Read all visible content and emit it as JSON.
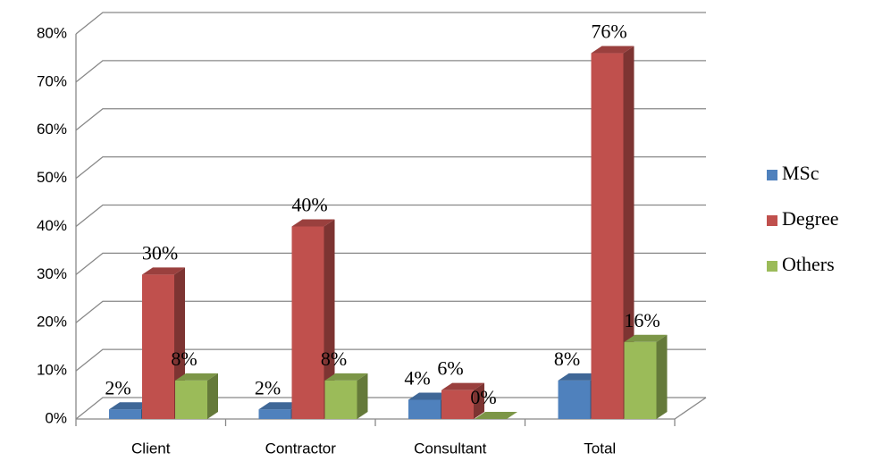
{
  "chart_data": {
    "type": "bar3d",
    "categories": [
      "Client",
      "Contractor",
      "Consultant",
      "Total"
    ],
    "series": [
      {
        "name": "MSc",
        "color": "#4f81bd",
        "values": [
          2,
          2,
          4,
          8
        ],
        "value_labels": [
          "2%",
          "2%",
          "4%",
          "8%"
        ]
      },
      {
        "name": "Degree",
        "color": "#c0504d",
        "values": [
          30,
          40,
          6,
          76
        ],
        "value_labels": [
          "30%",
          "40%",
          "6%",
          "76%"
        ]
      },
      {
        "name": "Others",
        "color": "#9bbb59",
        "values": [
          8,
          8,
          0,
          16
        ],
        "value_labels": [
          "8%",
          "8%",
          "0%",
          "16%"
        ]
      }
    ],
    "ylim": [
      0,
      80
    ],
    "yticks": [
      {
        "value": 0,
        "label": "0%"
      },
      {
        "value": 10,
        "label": "10%"
      },
      {
        "value": 20,
        "label": "20%"
      },
      {
        "value": 30,
        "label": "30%"
      },
      {
        "value": 40,
        "label": "40%"
      },
      {
        "value": 50,
        "label": "50%"
      },
      {
        "value": 60,
        "label": "60%"
      },
      {
        "value": 70,
        "label": "70%"
      },
      {
        "value": 80,
        "label": "80%"
      }
    ],
    "grid": true,
    "legend": "right"
  }
}
